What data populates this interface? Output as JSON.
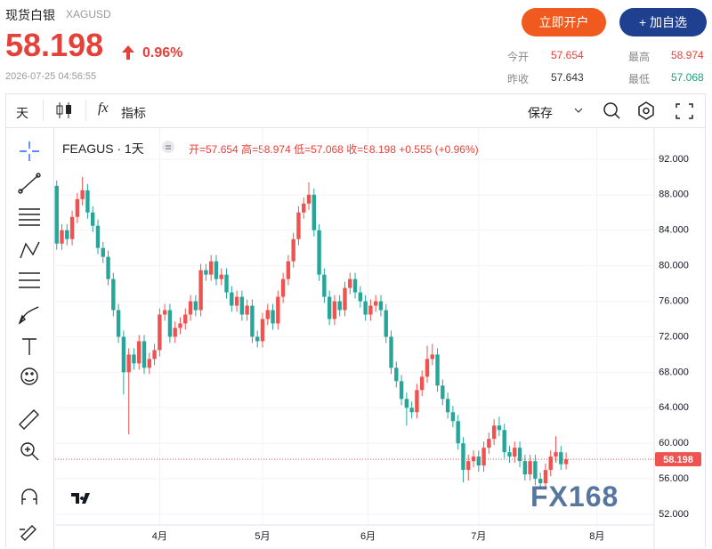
{
  "header": {
    "title": "现货白银",
    "code": "XAGUSD",
    "price": "58.198",
    "change": "0.96%",
    "time": "2026-07-25 04:56:55",
    "buttons": [
      "立即开户",
      "+ 加自选"
    ],
    "stats": [
      {
        "label": "今开",
        "value": "57.654"
      },
      {
        "label": "最高",
        "value": "58.974"
      },
      {
        "label": "昨收",
        "value": "57.643"
      },
      {
        "label": "最低",
        "value": "57.068"
      }
    ]
  },
  "toolbar": {
    "interval": "天",
    "indicators": "指标",
    "save": "保存"
  },
  "legend": {
    "symbol": "FEAGUS · 1天",
    "items": [
      "开=57.654",
      "高=58.974",
      "低=57.068",
      "收=58.198",
      "+0.555 (+0.96%)"
    ]
  },
  "watermark": "FX168",
  "chart_data": {
    "type": "candlestick",
    "up_color": "#ef5350",
    "down_color": "#26a69a",
    "ylim": [
      50.8,
      95.5
    ],
    "yticks": [
      {
        "value": 52,
        "label": "52.000"
      },
      {
        "value": 56,
        "label": "56.000"
      },
      {
        "value": 60,
        "label": "60.000"
      },
      {
        "value": 64,
        "label": "64.000"
      },
      {
        "value": 68,
        "label": "68.000"
      },
      {
        "value": 72,
        "label": "72.000"
      },
      {
        "value": 76,
        "label": "76.000"
      },
      {
        "value": 80,
        "label": "80.000"
      },
      {
        "value": 84,
        "label": "84.000"
      },
      {
        "value": 88,
        "label": "88.000"
      },
      {
        "value": 92,
        "label": "92.000"
      }
    ],
    "xlim": [
      -0.3,
      108.5
    ],
    "xticks": [
      {
        "value": 20,
        "label": "4月"
      },
      {
        "value": 40,
        "label": "5月"
      },
      {
        "value": 60.5,
        "label": "6月"
      },
      {
        "value": 82,
        "label": "7月"
      },
      {
        "value": 105,
        "label": "8月"
      }
    ],
    "grid": true,
    "price_line": 58.198,
    "candles": [
      [
        89,
        89.6,
        81.8,
        82.5
      ],
      [
        82.5,
        84.7,
        81.8,
        84.0
      ],
      [
        84.0,
        84.7,
        82.3,
        83.0
      ],
      [
        83.0,
        86.2,
        82.3,
        85.5
      ],
      [
        85.5,
        88.2,
        84.8,
        87.5
      ],
      [
        87.5,
        90.0,
        86.8,
        88.5
      ],
      [
        88.5,
        89.2,
        85.3,
        86.0
      ],
      [
        86.0,
        86.7,
        83.8,
        84.5
      ],
      [
        84.5,
        85.2,
        81.3,
        82.0
      ],
      [
        82.0,
        82.7,
        80.3,
        81.0
      ],
      [
        81.0,
        81.7,
        77.8,
        78.5
      ],
      [
        78.5,
        79.2,
        74.3,
        75.0
      ],
      [
        75.0,
        75.7,
        71.3,
        72.0
      ],
      [
        72.0,
        72.7,
        65.5,
        68.0
      ],
      [
        68.0,
        70.7,
        61.0,
        70.0
      ],
      [
        70.0,
        70.7,
        68.3,
        69.0
      ],
      [
        69.0,
        72.2,
        68.3,
        71.5
      ],
      [
        71.5,
        72.2,
        67.8,
        68.5
      ],
      [
        68.5,
        70.2,
        67.8,
        69.5
      ],
      [
        69.5,
        71.2,
        68.8,
        70.5
      ],
      [
        70.5,
        75.2,
        69.8,
        74.5
      ],
      [
        74.5,
        75.7,
        73.8,
        75.0
      ],
      [
        75.0,
        75.7,
        71.3,
        72.0
      ],
      [
        72.0,
        73.7,
        71.3,
        73.0
      ],
      [
        73.0,
        74.2,
        72.3,
        73.5
      ],
      [
        73.5,
        75.2,
        72.8,
        74.5
      ],
      [
        74.5,
        76.7,
        73.8,
        76.0
      ],
      [
        76.0,
        76.7,
        74.3,
        75.0
      ],
      [
        75.0,
        80.2,
        74.3,
        79.5
      ],
      [
        79.5,
        80.2,
        78.3,
        79.0
      ],
      [
        79.0,
        81.2,
        78.3,
        80.5
      ],
      [
        80.5,
        81.2,
        77.8,
        78.5
      ],
      [
        78.5,
        79.7,
        77.8,
        79.0
      ],
      [
        79.0,
        79.7,
        76.3,
        77.0
      ],
      [
        77.0,
        77.7,
        74.8,
        75.5
      ],
      [
        75.5,
        77.2,
        74.8,
        76.5
      ],
      [
        76.5,
        77.2,
        73.8,
        74.5
      ],
      [
        74.5,
        76.2,
        73.8,
        75.5
      ],
      [
        75.5,
        76.2,
        71.3,
        72.0
      ],
      [
        72.0,
        72.7,
        70.8,
        71.5
      ],
      [
        71.5,
        74.7,
        70.8,
        74.0
      ],
      [
        74.0,
        75.7,
        73.3,
        75.0
      ],
      [
        75.0,
        75.7,
        72.8,
        73.5
      ],
      [
        73.5,
        77.2,
        72.8,
        76.5
      ],
      [
        76.5,
        79.2,
        75.8,
        78.5
      ],
      [
        78.5,
        81.2,
        77.8,
        80.5
      ],
      [
        80.5,
        83.7,
        79.8,
        83.0
      ],
      [
        83.0,
        86.7,
        82.3,
        86.0
      ],
      [
        86.0,
        87.7,
        85.3,
        87.0
      ],
      [
        87.0,
        89.4,
        86.3,
        88.0
      ],
      [
        88.0,
        88.7,
        83.3,
        84.0
      ],
      [
        84.0,
        84.7,
        78.3,
        79.0
      ],
      [
        79.0,
        79.7,
        75.8,
        76.5
      ],
      [
        76.5,
        77.2,
        73.3,
        74.0
      ],
      [
        74.0,
        76.7,
        73.3,
        76.0
      ],
      [
        76.0,
        76.7,
        74.3,
        75.0
      ],
      [
        75.0,
        78.2,
        74.3,
        77.5
      ],
      [
        77.5,
        79.2,
        76.8,
        78.5
      ],
      [
        78.5,
        79.2,
        76.3,
        77.0
      ],
      [
        77.0,
        77.7,
        75.3,
        76.0
      ],
      [
        76.0,
        76.7,
        73.8,
        74.5
      ],
      [
        74.5,
        76.2,
        73.8,
        75.5
      ],
      [
        75.5,
        76.7,
        74.8,
        76.0
      ],
      [
        76.0,
        76.7,
        74.3,
        75.0
      ],
      [
        75.0,
        75.7,
        71.3,
        72.0
      ],
      [
        72.0,
        72.7,
        67.8,
        68.5
      ],
      [
        68.5,
        69.2,
        66.3,
        67.0
      ],
      [
        67.0,
        67.7,
        64.3,
        65.0
      ],
      [
        65.0,
        65.7,
        62.0,
        64.0
      ],
      [
        64.0,
        64.7,
        62.8,
        63.5
      ],
      [
        63.5,
        66.7,
        62.8,
        66.0
      ],
      [
        66.0,
        68.2,
        65.3,
        67.5
      ],
      [
        67.5,
        71.0,
        66.8,
        69.5
      ],
      [
        69.5,
        71.2,
        68.8,
        70.0
      ],
      [
        70.0,
        70.7,
        65.8,
        66.5
      ],
      [
        66.5,
        67.2,
        64.3,
        65.0
      ],
      [
        65.0,
        65.7,
        62.8,
        63.5
      ],
      [
        63.5,
        64.2,
        61.8,
        62.5
      ],
      [
        62.5,
        63.2,
        59.3,
        60.0
      ],
      [
        60.0,
        60.7,
        55.6,
        57.0
      ],
      [
        57.0,
        58.7,
        55.8,
        58.0
      ],
      [
        58.0,
        59.2,
        57.3,
        58.5
      ],
      [
        58.5,
        59.2,
        56.8,
        57.5
      ],
      [
        57.5,
        60.2,
        56.8,
        59.5
      ],
      [
        59.5,
        61.2,
        58.8,
        60.5
      ],
      [
        60.5,
        62.7,
        59.8,
        62.0
      ],
      [
        62.0,
        63.0,
        60.8,
        61.5
      ],
      [
        61.5,
        62.2,
        58.3,
        59.0
      ],
      [
        59.0,
        59.7,
        57.8,
        58.5
      ],
      [
        58.5,
        60.2,
        57.8,
        59.5
      ],
      [
        59.5,
        60.2,
        57.3,
        58.0
      ],
      [
        58.0,
        58.7,
        55.8,
        56.5
      ],
      [
        56.5,
        58.7,
        55.8,
        58.0
      ],
      [
        58.0,
        58.7,
        55.3,
        56.0
      ],
      [
        56.0,
        56.7,
        54.8,
        55.5
      ],
      [
        55.5,
        57.7,
        54.8,
        57.0
      ],
      [
        57.0,
        59.2,
        56.3,
        58.5
      ],
      [
        58.5,
        60.8,
        57.8,
        59.0
      ],
      [
        59.0,
        59.7,
        57.0,
        57.643
      ],
      [
        57.654,
        58.974,
        57.068,
        58.198
      ]
    ]
  }
}
